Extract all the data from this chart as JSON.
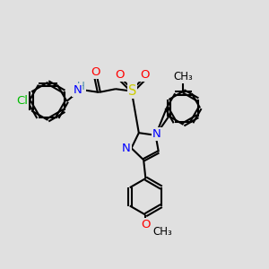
{
  "bg_color": "#e0e0e0",
  "bond_color": "#000000",
  "atom_colors": {
    "Cl": "#00bb00",
    "N": "#0000ff",
    "O": "#ff0000",
    "S": "#cccc00",
    "H": "#4488aa",
    "C": "#000000"
  },
  "line_width": 1.5,
  "font_size": 9.5,
  "small_font_size": 8.5
}
